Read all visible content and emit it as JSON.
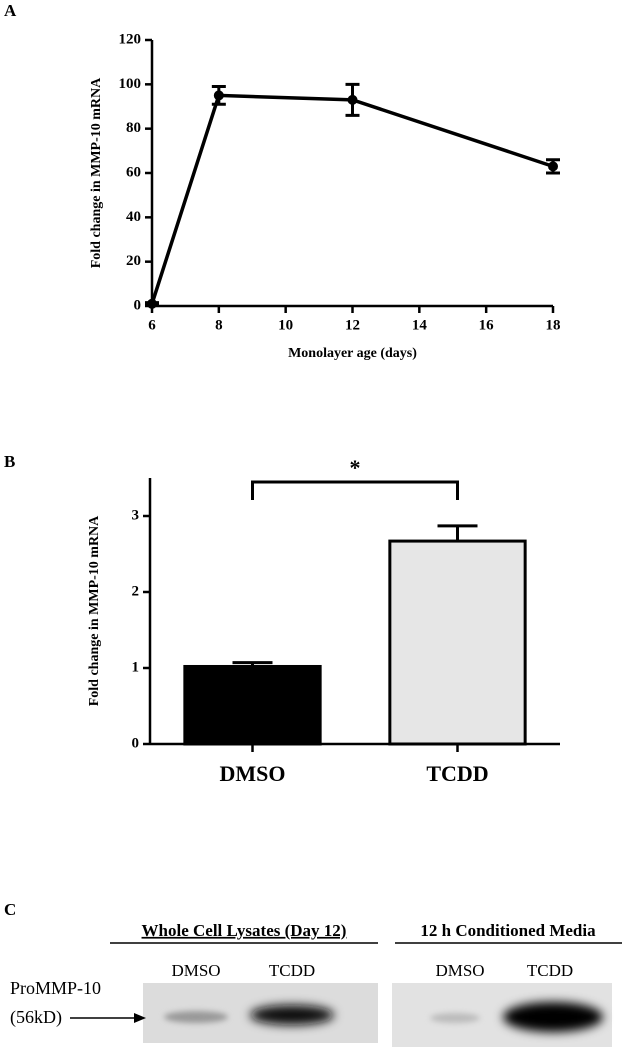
{
  "chart_data": [
    {
      "type": "line",
      "panel_label": "A",
      "ylabel": "Fold change in MMP-10 mRNA",
      "xlabel": "Monolayer age (days)",
      "x": [
        6,
        8,
        12,
        18
      ],
      "series": [
        {
          "color": "#000000",
          "values": [
            1,
            95,
            93,
            63
          ],
          "errors": [
            0.5,
            4,
            7,
            3
          ]
        }
      ],
      "xlim": [
        6,
        18
      ],
      "xticks": [
        6,
        8,
        10,
        12,
        14,
        16,
        18
      ],
      "ylim": [
        0,
        120
      ],
      "yticks": [
        0,
        20,
        40,
        60,
        80,
        100,
        120
      ]
    },
    {
      "type": "bar",
      "panel_label": "B",
      "ylabel": "Fold change in MMP-10 mRNA",
      "categories": [
        "DMSO",
        "TCDD"
      ],
      "values": [
        1.02,
        2.67
      ],
      "errors": [
        0.05,
        0.2
      ],
      "colors": [
        "#000000",
        "#e6e6e6"
      ],
      "annotation": "*",
      "ylim": [
        0,
        3.5
      ],
      "yticks": [
        0,
        1,
        2,
        3
      ]
    }
  ],
  "blot": {
    "panel_label": "C",
    "groups": [
      {
        "title": "Whole Cell Lysates (Day 12)",
        "lanes": [
          "DMSO",
          "TCDD"
        ]
      },
      {
        "title": "12 h Conditioned Media",
        "lanes": [
          "DMSO",
          "TCDD"
        ]
      }
    ],
    "band_label": "ProMMP-10",
    "band_size": "(56kD)"
  }
}
